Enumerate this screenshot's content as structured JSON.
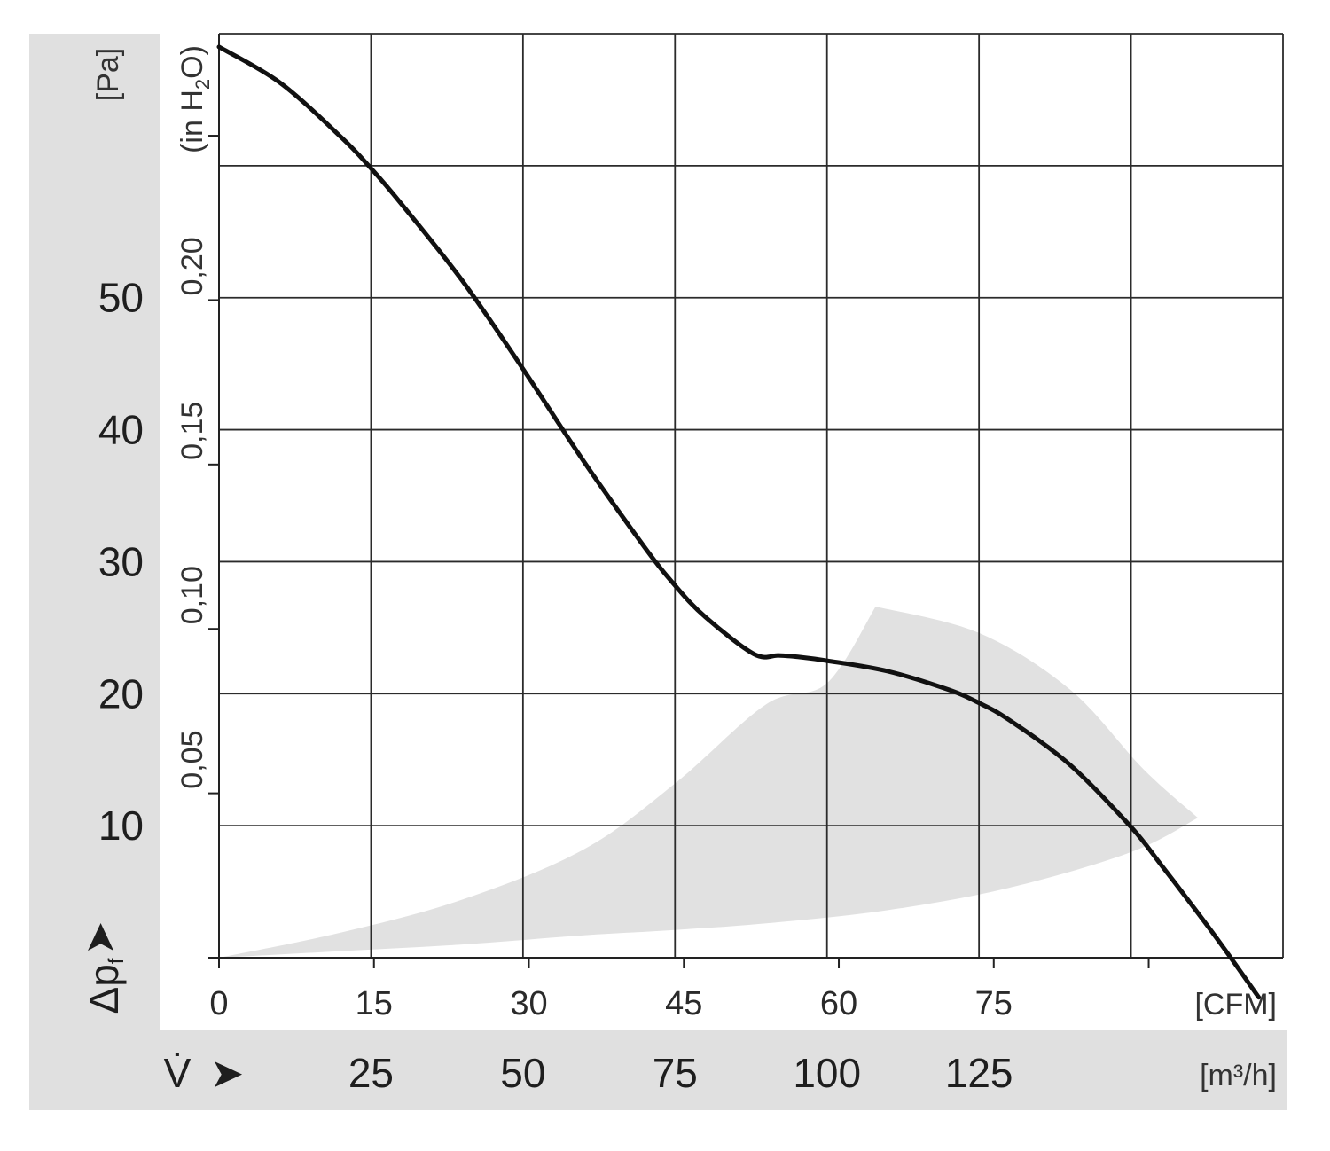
{
  "chart_data": {
    "type": "line",
    "pa_axis": {
      "label": "[Pa]",
      "range": [
        0,
        70
      ],
      "tick_values": [
        10,
        20,
        30,
        40,
        50
      ],
      "tick_labels": [
        "10",
        "20",
        "30",
        "40",
        "50"
      ]
    },
    "inh2o_axis": {
      "label_prefix": "(in H",
      "label_sub": "2",
      "label_suffix": "O)",
      "ticks": [
        0.05,
        0.1,
        0.15,
        0.2,
        0.25
      ],
      "tick_labels": [
        "0,05",
        "0,10",
        "0,15",
        "0,20"
      ]
    },
    "pressure_symbol": "Δp",
    "pressure_subscript": "f",
    "flow_symbol": "V̇",
    "arrow_glyph": "➤",
    "cfm_axis": {
      "label": "[CFM]",
      "tick_values": [
        0,
        15,
        30,
        45,
        60,
        75,
        90
      ],
      "tick_labels": [
        "0",
        "15",
        "30",
        "45",
        "60",
        "75"
      ]
    },
    "m3h_axis": {
      "label": "[m³/h]",
      "range": [
        0,
        175
      ],
      "grid_values": [
        25,
        50,
        75,
        100,
        125,
        150
      ],
      "tick_labels": [
        "25",
        "50",
        "75",
        "100",
        "125"
      ]
    },
    "series": [
      {
        "x_m3h": [
          0,
          10,
          20,
          25,
          30,
          40,
          50,
          60,
          70,
          75,
          80,
          88,
          92,
          95,
          100,
          110,
          120,
          125,
          130,
          140,
          150,
          155,
          160,
          165,
          171
        ],
        "y_pa": [
          69.0,
          66.3,
          62.2,
          59.8,
          57.1,
          51.3,
          44.6,
          37.6,
          31.1,
          28.2,
          25.8,
          23.0,
          22.9,
          22.8,
          22.5,
          21.7,
          20.3,
          19.3,
          18.0,
          14.6,
          9.9,
          7.0,
          4.0,
          0.9,
          -3.0
        ]
      }
    ],
    "operating_range": {
      "upper": {
        "x_m3h": [
          0,
          20,
          40,
          60,
          75,
          90,
          100,
          108
        ],
        "y_pa": [
          0,
          1.9,
          4.4,
          8.2,
          13.2,
          19.2,
          20.8,
          26.6
        ]
      },
      "outer_arc": {
        "x_m3h": [
          108,
          125,
          140,
          152,
          161
        ],
        "y_pa": [
          26.6,
          24.6,
          20.3,
          14.3,
          10.6
        ]
      },
      "lower": {
        "x_m3h": [
          161,
          150,
          130,
          110,
          90,
          75,
          60,
          40,
          20,
          0
        ],
        "y_pa": [
          10.6,
          8.0,
          5.3,
          3.6,
          2.6,
          2.1,
          1.7,
          1.0,
          0.5,
          0
        ]
      }
    },
    "grid": true,
    "colors": {
      "curve": "#111111",
      "grid": "#2b2b2b",
      "band": "#e1e1e1",
      "label_panel": "#e0e0e0"
    }
  }
}
